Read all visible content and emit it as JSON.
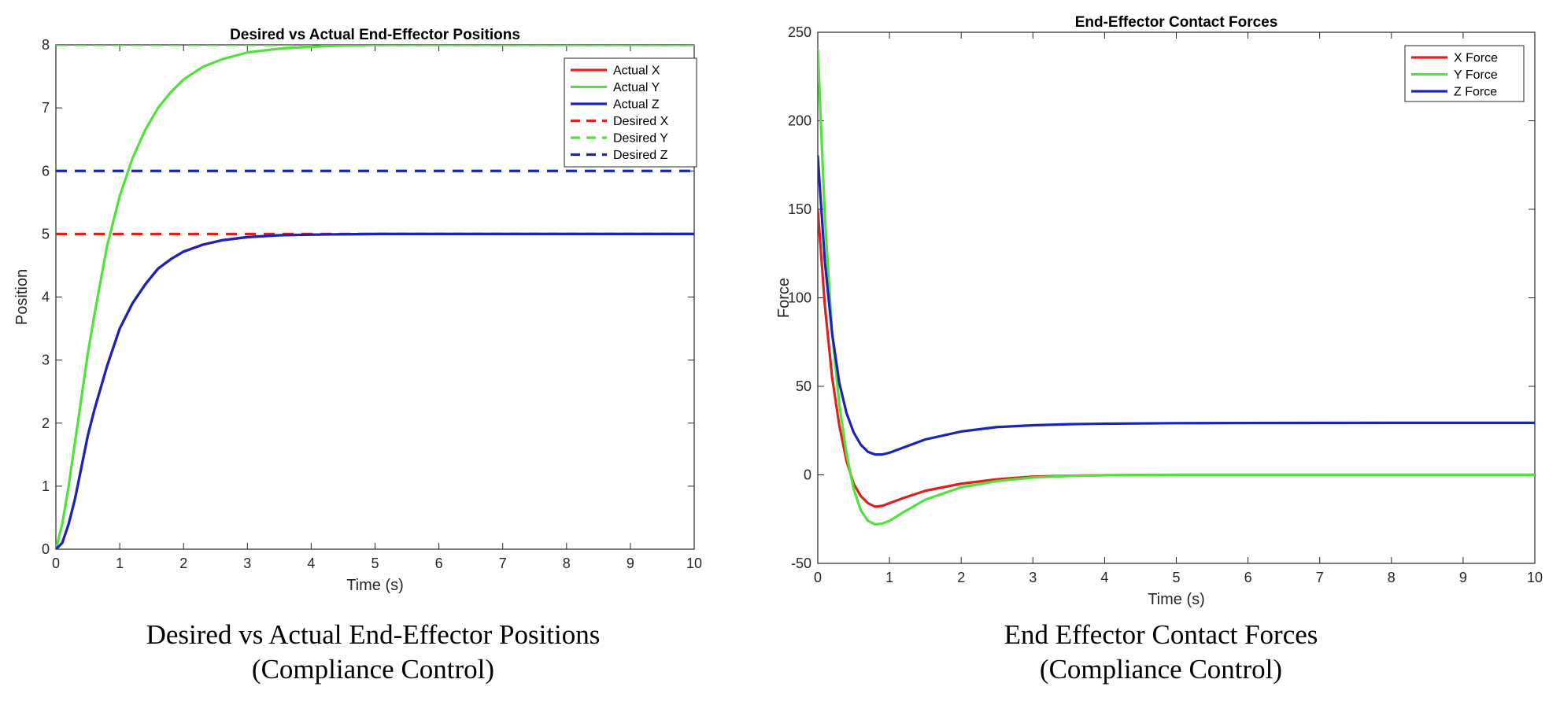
{
  "captions": [
    {
      "line1": "Desired vs Actual End-Effector Positions",
      "line2": "(Compliance Control)"
    },
    {
      "line1": "End Effector Contact Forces",
      "line2": "(Compliance Control)"
    }
  ],
  "chart_data": [
    {
      "type": "line",
      "title": "Desired vs Actual End-Effector Positions",
      "xlabel": "Time (s)",
      "ylabel": "Position",
      "xlim": [
        0,
        10
      ],
      "ylim": [
        0,
        8
      ],
      "xticks": [
        "0",
        "1",
        "2",
        "3",
        "4",
        "5",
        "6",
        "7",
        "8",
        "9",
        "10"
      ],
      "yticks": [
        "0",
        "1",
        "2",
        "3",
        "4",
        "5",
        "6",
        "7",
        "8"
      ],
      "grid": false,
      "legend_position": "top-right",
      "series": [
        {
          "name": "Actual X",
          "color": "#e0201f",
          "style": "solid",
          "x": [
            0,
            0.1,
            0.2,
            0.3,
            0.4,
            0.5,
            0.6,
            0.8,
            1,
            1.2,
            1.4,
            1.6,
            1.8,
            2,
            2.3,
            2.6,
            3,
            3.5,
            4,
            5,
            6,
            7,
            8,
            10
          ],
          "y": [
            0,
            0.1,
            0.4,
            0.8,
            1.3,
            1.8,
            2.2,
            2.9,
            3.5,
            3.9,
            4.2,
            4.45,
            4.6,
            4.72,
            4.83,
            4.9,
            4.95,
            4.98,
            4.99,
            5,
            5,
            5,
            5,
            5
          ]
        },
        {
          "name": "Actual Y",
          "color": "#4ee23a",
          "style": "solid",
          "x": [
            0,
            0.1,
            0.2,
            0.3,
            0.4,
            0.5,
            0.6,
            0.8,
            1,
            1.2,
            1.4,
            1.6,
            1.8,
            2,
            2.3,
            2.6,
            3,
            3.5,
            4,
            4.5,
            5,
            6,
            7,
            8,
            10
          ],
          "y": [
            0,
            0.4,
            1.0,
            1.7,
            2.4,
            3.1,
            3.7,
            4.8,
            5.6,
            6.2,
            6.65,
            7.0,
            7.25,
            7.45,
            7.65,
            7.77,
            7.88,
            7.94,
            7.97,
            7.99,
            8,
            8,
            8,
            8,
            8
          ]
        },
        {
          "name": "Actual Z",
          "color": "#1a24b8",
          "style": "solid",
          "x": [
            0,
            0.1,
            0.2,
            0.3,
            0.4,
            0.5,
            0.6,
            0.8,
            1,
            1.2,
            1.4,
            1.6,
            1.8,
            2,
            2.3,
            2.6,
            3,
            3.5,
            4,
            5,
            6,
            7,
            8,
            10
          ],
          "y": [
            0,
            0.1,
            0.4,
            0.8,
            1.3,
            1.8,
            2.2,
            2.9,
            3.5,
            3.9,
            4.2,
            4.45,
            4.6,
            4.72,
            4.83,
            4.9,
            4.95,
            4.98,
            4.99,
            5,
            5,
            5,
            5,
            5
          ]
        },
        {
          "name": "Desired X",
          "color": "#e0201f",
          "style": "dashed",
          "x": [
            0,
            10
          ],
          "y": [
            5,
            5
          ]
        },
        {
          "name": "Desired Y",
          "color": "#4ee23a",
          "style": "dashed",
          "x": [
            0,
            10
          ],
          "y": [
            8,
            8
          ]
        },
        {
          "name": "Desired Z",
          "color": "#1a24b8",
          "style": "dashed",
          "x": [
            0,
            10
          ],
          "y": [
            6,
            6
          ]
        }
      ]
    },
    {
      "type": "line",
      "title": "End-Effector Contact Forces",
      "xlabel": "Time (s)",
      "ylabel": "Force",
      "xlim": [
        0,
        10
      ],
      "ylim": [
        -50,
        250
      ],
      "xticks": [
        "0",
        "1",
        "2",
        "3",
        "4",
        "5",
        "6",
        "7",
        "8",
        "9",
        "10"
      ],
      "yticks": [
        "-50",
        "0",
        "50",
        "100",
        "150",
        "200",
        "250"
      ],
      "grid": false,
      "legend_position": "top-right",
      "series": [
        {
          "name": "X Force",
          "color": "#e0201f",
          "style": "solid",
          "x": [
            0,
            0.1,
            0.2,
            0.3,
            0.4,
            0.5,
            0.6,
            0.7,
            0.8,
            0.9,
            1,
            1.2,
            1.5,
            2,
            2.5,
            3,
            3.5,
            4,
            5,
            6,
            8,
            10
          ],
          "y": [
            150,
            95,
            55,
            28,
            8,
            -5,
            -12,
            -16,
            -18,
            -17.5,
            -16,
            -13,
            -9,
            -5,
            -2.5,
            -1,
            -0.5,
            -0.2,
            0,
            0,
            0,
            0
          ]
        },
        {
          "name": "Y Force",
          "color": "#4ee23a",
          "style": "solid",
          "x": [
            0,
            0.1,
            0.2,
            0.3,
            0.4,
            0.5,
            0.6,
            0.7,
            0.8,
            0.9,
            1,
            1.2,
            1.5,
            2,
            2.5,
            3,
            3.5,
            4,
            5,
            6,
            8,
            10
          ],
          "y": [
            240,
            145,
            80,
            40,
            12,
            -8,
            -20,
            -26,
            -28,
            -27.5,
            -26,
            -21,
            -14,
            -7,
            -3.5,
            -1.5,
            -0.6,
            -0.2,
            0,
            0,
            0,
            0
          ]
        },
        {
          "name": "Z Force",
          "color": "#1a24b8",
          "style": "solid",
          "x": [
            0,
            0.1,
            0.2,
            0.3,
            0.4,
            0.5,
            0.6,
            0.7,
            0.8,
            0.9,
            1,
            1.2,
            1.5,
            2,
            2.5,
            3,
            3.5,
            4,
            5,
            6,
            8,
            10
          ],
          "y": [
            180,
            120,
            80,
            52,
            35,
            24,
            17,
            13,
            11.5,
            11.5,
            12.5,
            15.5,
            20,
            24.5,
            27,
            28,
            28.6,
            28.9,
            29.2,
            29.3,
            29.4,
            29.4
          ]
        }
      ]
    }
  ]
}
